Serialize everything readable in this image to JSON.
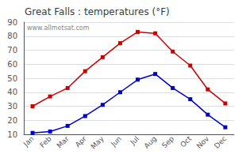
{
  "chart_data": {
    "type": "line",
    "title": "Great Falls : temperatures (°F)",
    "annotation": "www.allmetsat.com",
    "categories": [
      "Jan",
      "Feb",
      "Mar",
      "Apr",
      "May",
      "Jun",
      "Jul",
      "Aug",
      "Sep",
      "Oct",
      "Nov",
      "Dec"
    ],
    "series": [
      {
        "color": "#cc0000",
        "marker": "square",
        "values": [
          30,
          37,
          43,
          55,
          65,
          75,
          83,
          82,
          69,
          59,
          42,
          32
        ]
      },
      {
        "color": "#0000cc",
        "marker": "square",
        "values": [
          11,
          12,
          16,
          23,
          31,
          40,
          49,
          53,
          43,
          35,
          24,
          15
        ]
      }
    ],
    "ylim": [
      10,
      90
    ],
    "yticks": [
      10,
      20,
      30,
      40,
      50,
      60,
      70,
      80,
      90
    ],
    "grid": true
  }
}
